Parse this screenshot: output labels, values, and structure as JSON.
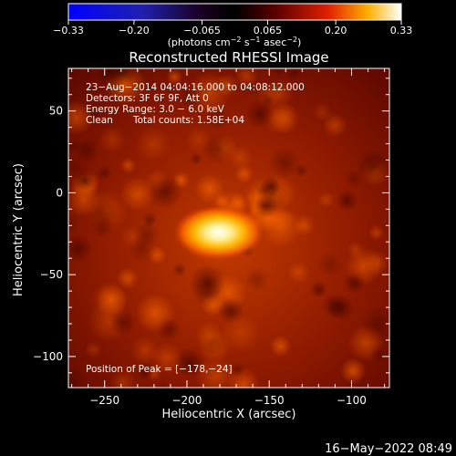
{
  "chart_data": {
    "type": "heatmap",
    "title": "Reconstructed RHESSI Image",
    "xlabel": "Heliocentric X (arcsec)",
    "ylabel": "Heliocentric Y (arcsec)",
    "xlim": [
      -272,
      -77
    ],
    "ylim": [
      -119,
      76
    ],
    "xticks": [
      -250,
      -200,
      -150,
      -100
    ],
    "yticks": [
      50,
      0,
      -50,
      -100
    ],
    "xtick_labels": [
      "−250",
      "−200",
      "−150",
      "−100"
    ],
    "ytick_labels": [
      "50",
      "0",
      "−50",
      "−100"
    ],
    "colorbar": {
      "range": [
        -0.33,
        0.33
      ],
      "ticks": [
        -0.33,
        -0.2,
        -0.065,
        0.065,
        0.2,
        0.33
      ],
      "tick_labels": [
        "−0.33",
        "−0.20",
        "−0.065",
        "0.065",
        "0.20",
        "0.33"
      ],
      "units_main": "(photons cm",
      "units_exp1": "−2",
      "units_mid": " s",
      "units_exp2": "−1",
      "units_mid2": " asec",
      "units_exp3": "−2",
      "units_end": ")"
    },
    "peak_position": [
      -178,
      -24
    ],
    "annotations": {
      "time": "23−Aug−2014 04:04:16.000 to 04:08:12.000",
      "detectors": "Detectors: 3F 6F 9F, Att 0",
      "energy": "Energy Range: 3.0 − 6.0 keV",
      "method": "Clean",
      "counts": "Total counts: 1.58E+04",
      "peak": "Position of Peak = [−178,−24]"
    }
  },
  "footer": {
    "timestamp": "16−May−2022 08:49"
  }
}
